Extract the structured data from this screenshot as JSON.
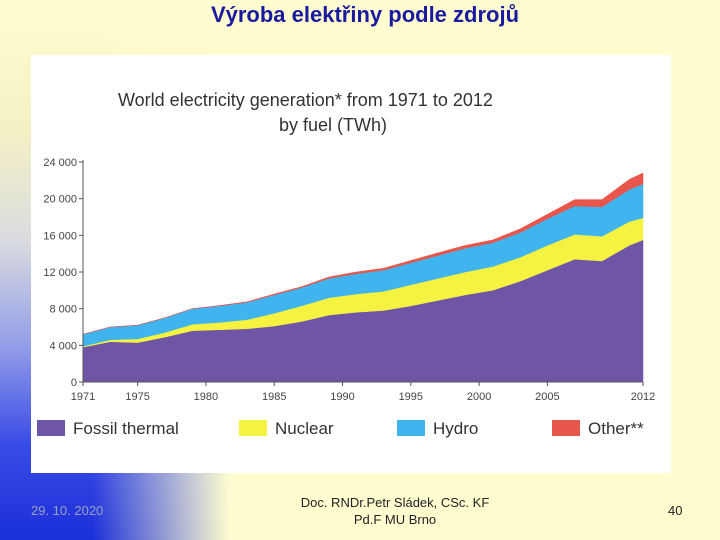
{
  "slide": {
    "title": "Výroba elektřiny podle zdrojů",
    "date": "29. 10. 2020",
    "author_line1": "Doc. RNDr.Petr Sládek, CSc. KF",
    "author_line2": "Pd.F MU Brno",
    "page_number": "40"
  },
  "chart_data": {
    "type": "area",
    "stacked": true,
    "title_line1": "World electricity generation* from 1971 to 2012",
    "title_line2": "by fuel (TWh)",
    "xlabel": "",
    "ylabel": "",
    "xlim": [
      1971,
      2012
    ],
    "ylim": [
      0,
      24000
    ],
    "x_ticks": [
      1971,
      1975,
      1980,
      1985,
      1990,
      1995,
      2000,
      2005,
      2012
    ],
    "y_ticks": [
      0,
      4000,
      8000,
      12000,
      16000,
      20000,
      24000
    ],
    "y_tick_labels": [
      "0",
      "4 000",
      "8 000",
      "12 000",
      "16 000",
      "20 000",
      "24 000"
    ],
    "x": [
      1971,
      1973,
      1975,
      1977,
      1979,
      1981,
      1983,
      1985,
      1987,
      1989,
      1991,
      1993,
      1995,
      1997,
      1999,
      2001,
      2003,
      2005,
      2007,
      2009,
      2011,
      2012
    ],
    "series": [
      {
        "name": "Fossil thermal",
        "color": "#6f55a6",
        "values": [
          3800,
          4400,
          4300,
          4900,
          5600,
          5700,
          5800,
          6100,
          6600,
          7300,
          7600,
          7800,
          8300,
          8900,
          9500,
          10000,
          11000,
          12200,
          13400,
          13200,
          14900,
          15500
        ]
      },
      {
        "name": "Nuclear",
        "color": "#f5f241",
        "values": [
          100,
          200,
          400,
          500,
          700,
          800,
          1000,
          1400,
          1700,
          1900,
          2000,
          2100,
          2300,
          2400,
          2500,
          2600,
          2600,
          2700,
          2700,
          2700,
          2600,
          2400
        ]
      },
      {
        "name": "Hydro",
        "color": "#3fb4ee",
        "values": [
          1300,
          1400,
          1500,
          1600,
          1700,
          1800,
          1900,
          2000,
          2000,
          2100,
          2200,
          2300,
          2400,
          2500,
          2600,
          2600,
          2700,
          2900,
          3100,
          3200,
          3500,
          3700
        ]
      },
      {
        "name": "Other**",
        "color": "#e8554b",
        "values": [
          0,
          0,
          0,
          0,
          0,
          50,
          50,
          100,
          100,
          150,
          200,
          200,
          250,
          300,
          300,
          300,
          400,
          500,
          700,
          800,
          1100,
          1200
        ]
      }
    ]
  }
}
